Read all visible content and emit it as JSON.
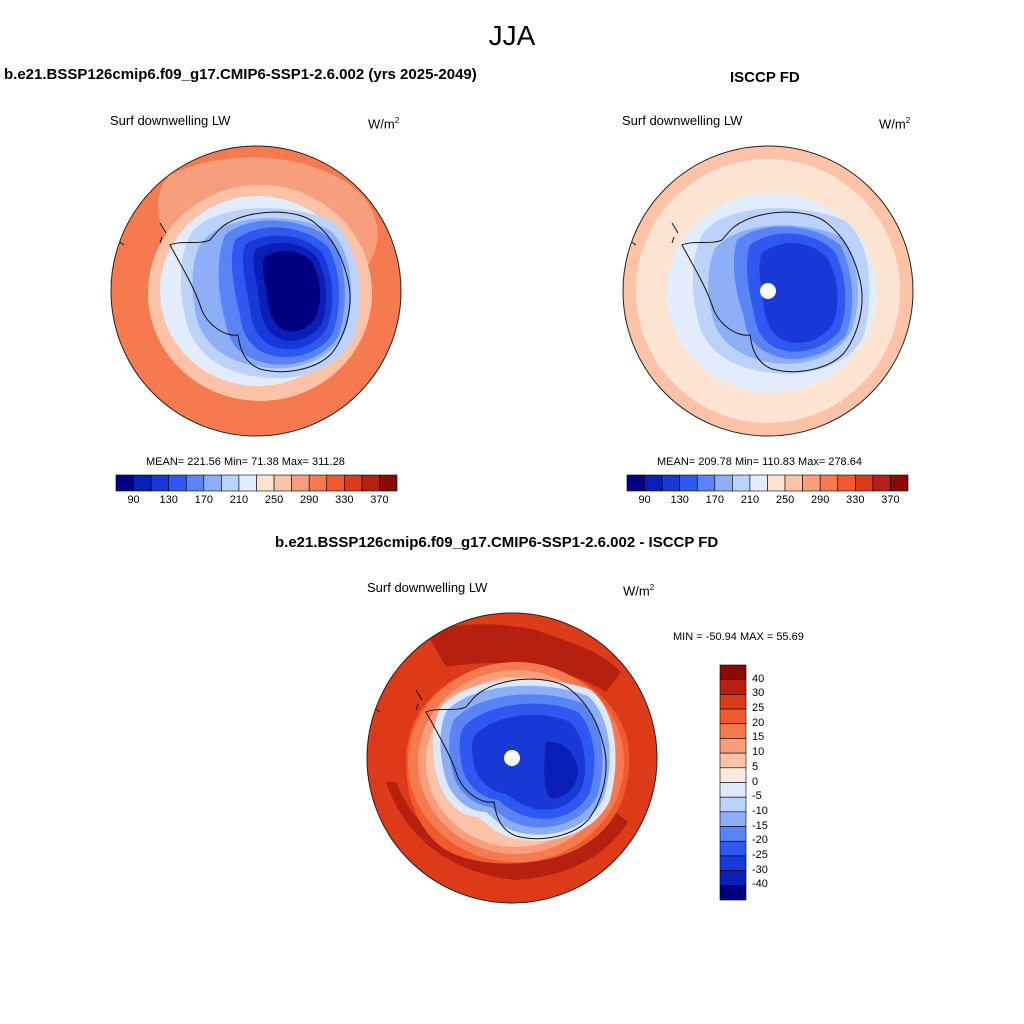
{
  "title": "JJA",
  "panels": [
    {
      "title": "b.e21.BSSP126cmip6.f09_g17.CMIP6-SSP1-2.6.002 (yrs 2025-2049)",
      "variable": "Surf downwelling LW",
      "units": "W/m",
      "units_sup": "2",
      "stats": "MEAN= 221.56  Min=  71.38  Max= 311.28",
      "mean": 221.56,
      "min": 71.38,
      "max": 311.28,
      "colorbar_ticks": [
        "90",
        "130",
        "170",
        "210",
        "250",
        "290",
        "330",
        "370"
      ],
      "pole_hole": false
    },
    {
      "title": "ISCCP FD",
      "variable": "Surf downwelling LW",
      "units": "W/m",
      "units_sup": "2",
      "stats": "MEAN= 209.78  Min= 110.83  Max= 278.64",
      "mean": 209.78,
      "min": 110.83,
      "max": 278.64,
      "colorbar_ticks": [
        "90",
        "130",
        "170",
        "210",
        "250",
        "290",
        "330",
        "370"
      ],
      "pole_hole": true
    },
    {
      "title": "b.e21.BSSP126cmip6.f09_g17.CMIP6-SSP1-2.6.002 - ISCCP FD",
      "variable": "Surf downwelling LW",
      "units": "W/m",
      "units_sup": "2",
      "stats": "MIN = -50.94 MAX =  55.69",
      "min": -50.94,
      "max": 55.69,
      "colorbar_ticks": [
        "40",
        "30",
        "25",
        "20",
        "15",
        "10",
        "5",
        "0",
        "-5",
        "-10",
        "-15",
        "-20",
        "-25",
        "-30",
        "-40"
      ],
      "pole_hole": true
    }
  ],
  "colors": {
    "abs_scale": [
      "#000080",
      "#0a1fb8",
      "#1838d8",
      "#2f58f0",
      "#5a84f5",
      "#8eaef8",
      "#bcd2fa",
      "#e3ecfd",
      "#fde3d2",
      "#fcc3a8",
      "#f99e7c",
      "#f57a50",
      "#f05a2e",
      "#dc3a18",
      "#b52010",
      "#8a0a05"
    ],
    "diff_scale": [
      "#8a0a05",
      "#b52010",
      "#dc3a18",
      "#f05a2e",
      "#f57a50",
      "#f99e7c",
      "#fcc3a8",
      "#fde8dc",
      "#dfe9fc",
      "#bcd2fa",
      "#8eaef8",
      "#5a84f5",
      "#2f58f0",
      "#1838d8",
      "#0a1fb8",
      "#000080"
    ]
  }
}
